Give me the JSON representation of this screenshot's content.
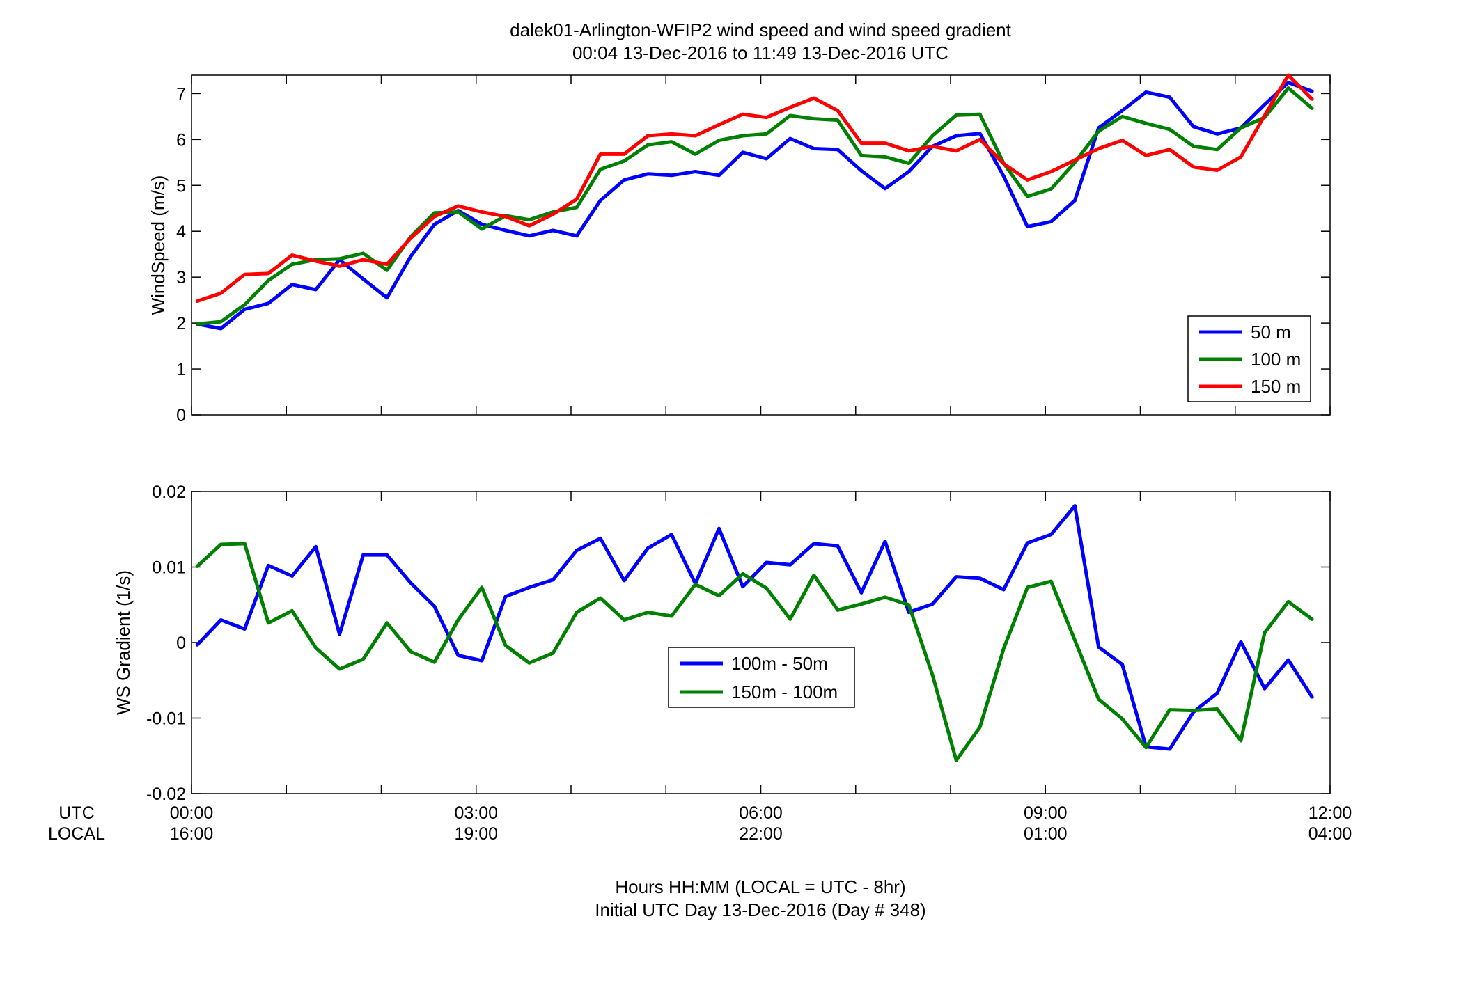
{
  "figure": {
    "title_line1": "dalek01-Arlington-WFIP2  wind speed and wind speed gradient",
    "title_line2": "00:04 13-Dec-2016 to 11:49 13-Dec-2016  UTC",
    "footer_line1": "Hours HH:MM  (LOCAL = UTC - 8hr)",
    "footer_line2": "Initial UTC Day 13-Dec-2016 (Day # 348)",
    "row_label_utc": "UTC",
    "row_label_local": "LOCAL"
  },
  "chart_data": [
    {
      "type": "line",
      "ylabel": "WindSpeed (m/s)",
      "xlim": [
        0,
        12
      ],
      "ylim": [
        0,
        7.4
      ],
      "yticks": [
        0,
        1,
        2,
        3,
        4,
        5,
        6,
        7
      ],
      "ytick_labels": [
        "0",
        "1",
        "2",
        "3",
        "4",
        "5",
        "6",
        "7"
      ],
      "grid": false,
      "legend_position": "bottom-right",
      "x_hours": [
        0.06,
        0.31,
        0.56,
        0.81,
        1.06,
        1.31,
        1.56,
        1.81,
        2.06,
        2.31,
        2.56,
        2.81,
        3.06,
        3.31,
        3.56,
        3.81,
        4.06,
        4.31,
        4.56,
        4.81,
        5.06,
        5.31,
        5.56,
        5.81,
        6.06,
        6.31,
        6.56,
        6.81,
        7.06,
        7.31,
        7.56,
        7.81,
        8.06,
        8.31,
        8.56,
        8.81,
        9.06,
        9.31,
        9.56,
        9.81,
        10.06,
        10.31,
        10.56,
        10.81,
        11.06,
        11.31,
        11.56,
        11.81
      ],
      "series": [
        {
          "name": "50 m",
          "color": "#0000ff",
          "values": [
            1.98,
            1.88,
            2.3,
            2.43,
            2.84,
            2.73,
            3.38,
            2.96,
            2.55,
            3.45,
            4.15,
            4.45,
            4.15,
            4.02,
            3.9,
            4.02,
            3.9,
            4.67,
            5.12,
            5.25,
            5.22,
            5.3,
            5.22,
            5.72,
            5.58,
            6.02,
            5.8,
            5.78,
            5.32,
            4.93,
            5.3,
            5.85,
            6.08,
            6.13,
            5.2,
            4.1,
            4.21,
            4.67,
            6.25,
            6.63,
            7.03,
            6.92,
            6.28,
            6.12,
            6.25,
            6.76,
            7.24,
            7.05
          ]
        },
        {
          "name": "100 m",
          "color": "#008000",
          "values": [
            1.98,
            2.03,
            2.4,
            2.93,
            3.28,
            3.38,
            3.4,
            3.52,
            3.15,
            3.88,
            4.4,
            4.42,
            4.05,
            4.34,
            4.25,
            4.42,
            4.52,
            5.35,
            5.53,
            5.88,
            5.95,
            5.68,
            5.98,
            6.08,
            6.12,
            6.52,
            6.45,
            6.42,
            5.65,
            5.62,
            5.48,
            6.08,
            6.53,
            6.55,
            5.48,
            4.76,
            4.92,
            5.5,
            6.18,
            6.5,
            6.35,
            6.22,
            5.85,
            5.78,
            6.25,
            6.48,
            7.12,
            6.68
          ]
        },
        {
          "name": "150 m",
          "color": "#ff0000",
          "values": [
            2.48,
            2.65,
            3.06,
            3.08,
            3.48,
            3.35,
            3.24,
            3.38,
            3.28,
            3.85,
            4.32,
            4.55,
            4.42,
            4.32,
            4.12,
            4.37,
            4.7,
            5.68,
            5.68,
            6.08,
            6.12,
            6.08,
            6.32,
            6.55,
            6.48,
            6.7,
            6.9,
            6.63,
            5.92,
            5.92,
            5.75,
            5.85,
            5.75,
            6.0,
            5.47,
            5.12,
            5.3,
            5.55,
            5.8,
            5.98,
            5.65,
            5.78,
            5.4,
            5.33,
            5.62,
            6.52,
            7.4,
            6.88
          ]
        }
      ]
    },
    {
      "type": "line",
      "ylabel": "WS Gradient (1/s)",
      "xlim": [
        0,
        12
      ],
      "ylim": [
        -0.02,
        0.02
      ],
      "yticks": [
        -0.02,
        -0.01,
        0,
        0.01,
        0.02
      ],
      "ytick_labels": [
        "-0.02",
        "-0.01",
        "0",
        "0.01",
        "0.02"
      ],
      "grid": false,
      "legend_position": "center",
      "x_hours": [
        0.06,
        0.31,
        0.56,
        0.81,
        1.06,
        1.31,
        1.56,
        1.81,
        2.06,
        2.31,
        2.56,
        2.81,
        3.06,
        3.31,
        3.56,
        3.81,
        4.06,
        4.31,
        4.56,
        4.81,
        5.06,
        5.31,
        5.56,
        5.81,
        6.06,
        6.31,
        6.56,
        6.81,
        7.06,
        7.31,
        7.56,
        7.81,
        8.06,
        8.31,
        8.56,
        8.81,
        9.06,
        9.31,
        9.56,
        9.81,
        10.06,
        10.31,
        10.56,
        10.81,
        11.06,
        11.31,
        11.56,
        11.81
      ],
      "series": [
        {
          "name": "100m - 50m",
          "color": "#0000ff",
          "values": [
            -0.0003,
            0.003,
            0.0018,
            0.0102,
            0.0088,
            0.0127,
            0.0011,
            0.0116,
            0.0116,
            0.0079,
            0.0048,
            -0.0017,
            -0.0024,
            0.0061,
            0.0073,
            0.0083,
            0.0122,
            0.0138,
            0.0082,
            0.0125,
            0.0143,
            0.0078,
            0.0151,
            0.0074,
            0.0106,
            0.0103,
            0.0131,
            0.0128,
            0.0066,
            0.0134,
            0.004,
            0.0051,
            0.0087,
            0.0085,
            0.007,
            0.0132,
            0.0143,
            0.0181,
            -0.0006,
            -0.0029,
            -0.0138,
            -0.0141,
            -0.0092,
            -0.0067,
            0.0001,
            -0.0061,
            -0.0023,
            -0.0072
          ]
        },
        {
          "name": "150m - 100m",
          "color": "#008000",
          "values": [
            0.0101,
            0.013,
            0.0131,
            0.0026,
            0.0042,
            -0.0007,
            -0.0035,
            -0.0022,
            0.0026,
            -0.0012,
            -0.0026,
            0.003,
            0.0073,
            -0.0004,
            -0.0027,
            -0.0014,
            0.004,
            0.0059,
            0.003,
            0.004,
            0.0035,
            0.0077,
            0.0062,
            0.0091,
            0.0072,
            0.0031,
            0.0089,
            0.0043,
            0.0051,
            0.006,
            0.005,
            -0.0043,
            -0.0156,
            -0.0112,
            -0.0008,
            0.0073,
            0.0081,
            0.0003,
            -0.0075,
            -0.0101,
            -0.0139,
            -0.0089,
            -0.009,
            -0.0088,
            -0.013,
            0.0013,
            0.0054,
            0.0031
          ]
        }
      ]
    }
  ],
  "x_axis": {
    "utc_ticks": [
      "00:00",
      "03:00",
      "06:00",
      "09:00",
      "12:00"
    ],
    "local_ticks": [
      "16:00",
      "19:00",
      "22:00",
      "01:00",
      "04:00"
    ],
    "major_hours": [
      0,
      3,
      6,
      9,
      12
    ],
    "minor_hours": [
      1,
      2,
      4,
      5,
      7,
      8,
      10,
      11
    ]
  }
}
